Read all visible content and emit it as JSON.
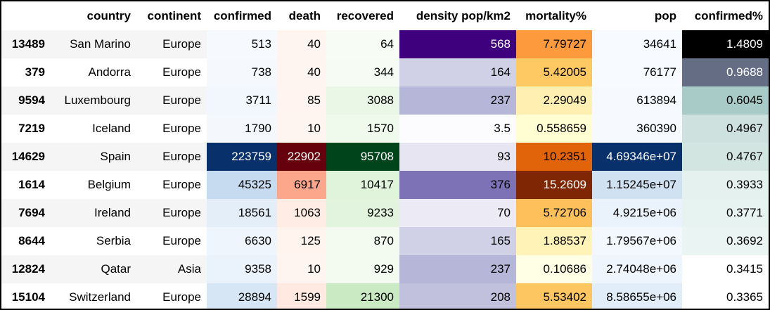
{
  "columns": [
    "",
    "country",
    "continent",
    "confirmed",
    "death",
    "recovered",
    "density pop/km2",
    "mortality%",
    "pop",
    "confirmed%"
  ],
  "rows": [
    {
      "index": "13489",
      "country": "San Marino",
      "continent": "Europe",
      "confirmed": "513",
      "death": "40",
      "recovered": "64",
      "density": "568",
      "mortality": "7.79727",
      "pop": "34641",
      "confirmed_pct": "1.4809"
    },
    {
      "index": "379",
      "country": "Andorra",
      "continent": "Europe",
      "confirmed": "738",
      "death": "40",
      "recovered": "344",
      "density": "164",
      "mortality": "5.42005",
      "pop": "76177",
      "confirmed_pct": "0.9688"
    },
    {
      "index": "9594",
      "country": "Luxembourg",
      "continent": "Europe",
      "confirmed": "3711",
      "death": "85",
      "recovered": "3088",
      "density": "237",
      "mortality": "2.29049",
      "pop": "613894",
      "confirmed_pct": "0.6045"
    },
    {
      "index": "7219",
      "country": "Iceland",
      "continent": "Europe",
      "confirmed": "1790",
      "death": "10",
      "recovered": "1570",
      "density": "3.5",
      "mortality": "0.558659",
      "pop": "360390",
      "confirmed_pct": "0.4967"
    },
    {
      "index": "14629",
      "country": "Spain",
      "continent": "Europe",
      "confirmed": "223759",
      "death": "22902",
      "recovered": "95708",
      "density": "93",
      "mortality": "10.2351",
      "pop": "4.69346e+07",
      "confirmed_pct": "0.4767"
    },
    {
      "index": "1614",
      "country": "Belgium",
      "continent": "Europe",
      "confirmed": "45325",
      "death": "6917",
      "recovered": "10417",
      "density": "376",
      "mortality": "15.2609",
      "pop": "1.15245e+07",
      "confirmed_pct": "0.3933"
    },
    {
      "index": "7694",
      "country": "Ireland",
      "continent": "Europe",
      "confirmed": "18561",
      "death": "1063",
      "recovered": "9233",
      "density": "70",
      "mortality": "5.72706",
      "pop": "4.9215e+06",
      "confirmed_pct": "0.3771"
    },
    {
      "index": "8644",
      "country": "Serbia",
      "continent": "Europe",
      "confirmed": "6630",
      "death": "125",
      "recovered": "870",
      "density": "165",
      "mortality": "1.88537",
      "pop": "1.79567e+06",
      "confirmed_pct": "0.3692"
    },
    {
      "index": "12824",
      "country": "Qatar",
      "continent": "Asia",
      "confirmed": "9358",
      "death": "10",
      "recovered": "929",
      "density": "237",
      "mortality": "0.10686",
      "pop": "2.74048e+06",
      "confirmed_pct": "0.3415"
    },
    {
      "index": "15104",
      "country": "Switzerland",
      "continent": "Europe",
      "confirmed": "28894",
      "death": "1599",
      "recovered": "21300",
      "density": "208",
      "mortality": "5.53402",
      "pop": "8.58655e+06",
      "confirmed_pct": "0.3365"
    }
  ],
  "cell_colors": {
    "confirmed": [
      "#f6faff",
      "#f5f9fe",
      "#f2f7fd",
      "#f4f8fd",
      "#08306b",
      "#c6dbef",
      "#e3eef8",
      "#eef5fc",
      "#eaf2fb",
      "#d7e6f4"
    ],
    "death": [
      "#fff5f0",
      "#fff5f0",
      "#fff4ef",
      "#fff5f0",
      "#67000d",
      "#fca78b",
      "#ffece4",
      "#fff4ee",
      "#fff5f0",
      "#ffe9e0"
    ],
    "recovered": [
      "#f7fcf5",
      "#f6fbf4",
      "#eaf7e6",
      "#eff9ec",
      "#00441b",
      "#e0f3db",
      "#e2f4dd",
      "#f3faf0",
      "#f3faf0",
      "#c9eac2"
    ],
    "density": [
      "#3f007d",
      "#d0d1e6",
      "#b6b6d8",
      "#fcfbfd",
      "#e6e5f1",
      "#7d72b6",
      "#eceaf4",
      "#d0d1e6",
      "#b6b6d8",
      "#c1c1de"
    ],
    "mortality": [
      "#fd9a3e",
      "#fec863",
      "#fff0b2",
      "#fffdd1",
      "#e2640a",
      "#7f2704",
      "#fdc05b",
      "#fff3b8",
      "#ffffe5",
      "#fec660"
    ],
    "pop": [
      "#f7fbff",
      "#f7fbff",
      "#f6faff",
      "#f6faff",
      "#08306b",
      "#d0e1f2",
      "#eaf2fb",
      "#f3f8fe",
      "#eff5fc",
      "#e1edf8"
    ],
    "confirmed_pct": [
      "#000000",
      "#646d84",
      "#a8cbc8",
      "#cfe1de",
      "#d3e5e1",
      "#e5f1ef",
      "#e7f3f0",
      "#eaf4f2",
      "#ffffff",
      "#ffffff"
    ]
  },
  "light_text": {
    "confirmed": [
      4
    ],
    "death": [
      4
    ],
    "recovered": [
      4
    ],
    "density": [
      0
    ],
    "mortality": [
      5
    ],
    "pop": [
      4
    ],
    "confirmed_pct": [
      0,
      1
    ]
  }
}
